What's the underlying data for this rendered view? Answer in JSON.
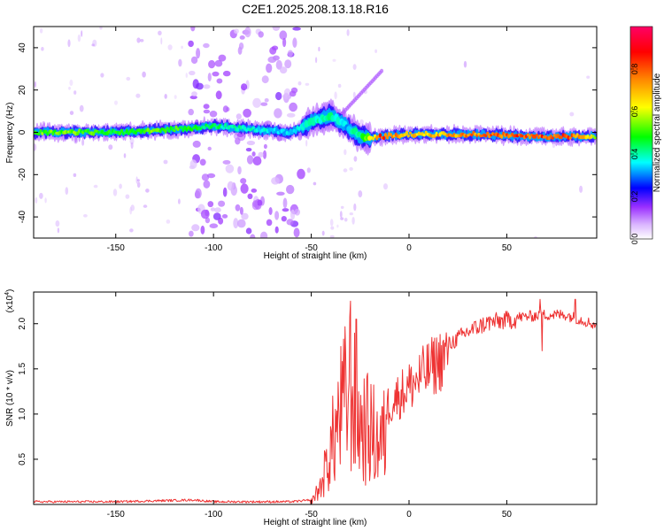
{
  "title": "C2E1.2025.208.13.18.R16",
  "chart_data": [
    {
      "type": "heatmap",
      "xlabel": "Height of straight line (km)",
      "ylabel": "Frequency (Hz)",
      "xlim": [
        -192,
        96
      ],
      "ylim": [
        -50,
        50
      ],
      "xticks": [
        -150,
        -100,
        -50,
        0,
        50
      ],
      "yticks": [
        -40,
        -20,
        0,
        20,
        40
      ],
      "colorbar": {
        "label": "Normalized spectral amplitude",
        "range": [
          0,
          1
        ],
        "ticks": [
          "0.0",
          "0.2",
          "0.4",
          "0.6",
          "0.8"
        ],
        "colors": [
          "#ffffff",
          "#9b30ff",
          "#0000ff",
          "#00ffff",
          "#00ff00",
          "#ffff00",
          "#ff8800",
          "#ff0000",
          "#ff0066"
        ]
      },
      "ridge": [
        [
          -192,
          0,
          0.55
        ],
        [
          -170,
          0,
          0.55
        ],
        [
          -150,
          0,
          0.5
        ],
        [
          -130,
          1,
          0.55
        ],
        [
          -110,
          2,
          0.5
        ],
        [
          -100,
          3,
          0.45
        ],
        [
          -60,
          0,
          0.35
        ],
        [
          -50,
          5,
          0.4
        ],
        [
          -40,
          8,
          0.45
        ],
        [
          -32,
          3,
          0.35
        ],
        [
          -25,
          -2,
          0.45
        ],
        [
          -20,
          -3,
          0.6
        ],
        [
          -15,
          -2,
          0.85
        ],
        [
          0,
          -1,
          0.7
        ],
        [
          20,
          -1,
          0.75
        ],
        [
          40,
          -1,
          0.8
        ],
        [
          60,
          -2,
          0.85
        ],
        [
          80,
          -2,
          0.85
        ],
        [
          96,
          -2,
          0.6
        ]
      ]
    },
    {
      "type": "line",
      "xlabel": "Height of straight line (km)",
      "ylabel": "SNR (10 * v/v)",
      "y_multiplier": "(x10^4)",
      "xlim": [
        -192,
        96
      ],
      "ylim": [
        0,
        2.35
      ],
      "xticks": [
        -150,
        -100,
        -50,
        0,
        50
      ],
      "yticks": [
        0.5,
        1.0,
        1.5,
        2.0
      ],
      "color": "#ee3333",
      "envelope": [
        [
          -192,
          0.03
        ],
        [
          -150,
          0.03
        ],
        [
          -130,
          0.04
        ],
        [
          -110,
          0.05
        ],
        [
          -100,
          0.03
        ],
        [
          -60,
          0.03
        ],
        [
          -50,
          0.05
        ],
        [
          -45,
          0.3
        ],
        [
          -40,
          0.9
        ],
        [
          -35,
          1.5
        ],
        [
          -30,
          1.9
        ],
        [
          -25,
          1.3
        ],
        [
          -20,
          1.2
        ],
        [
          -15,
          1.0
        ],
        [
          -10,
          1.2
        ],
        [
          -5,
          1.3
        ],
        [
          0,
          1.4
        ],
        [
          10,
          1.6
        ],
        [
          20,
          1.8
        ],
        [
          30,
          1.95
        ],
        [
          40,
          2.05
        ],
        [
          50,
          2.08
        ],
        [
          60,
          2.1
        ],
        [
          70,
          2.12
        ],
        [
          80,
          2.12
        ],
        [
          90,
          2.05
        ],
        [
          96,
          2.0
        ]
      ],
      "spikes": [
        [
          -30,
          2.25
        ],
        [
          -27,
          2.05
        ],
        [
          67,
          2.27
        ],
        [
          68,
          1.7
        ],
        [
          85,
          2.27
        ]
      ]
    }
  ]
}
